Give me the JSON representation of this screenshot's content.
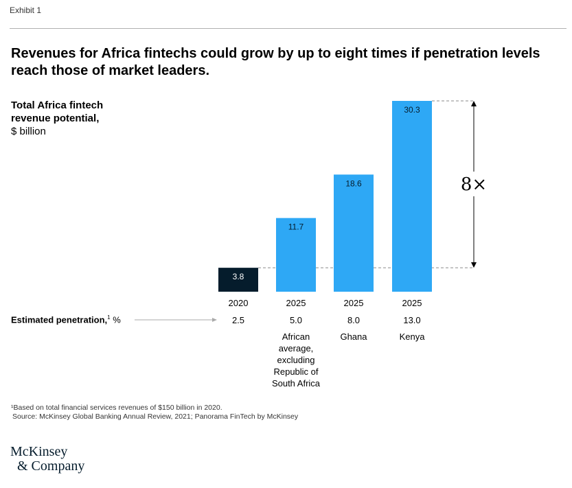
{
  "header": {
    "exhibit": "Exhibit 1"
  },
  "title": "Revenues for Africa fintechs could grow by up to eight times if penetration levels reach those of market leaders.",
  "y_label": {
    "bold": "Total Africa fintech revenue potential,",
    "unit": "$ billion"
  },
  "penetration_label": {
    "bold": "Estimated penetration,",
    "sup": "1",
    "unit": " %"
  },
  "chart_data": {
    "type": "bar",
    "title": "Revenues for Africa fintechs could grow by up to eight times if penetration levels reach those of market leaders.",
    "ylabel": "Total Africa fintech revenue potential, $ billion",
    "ylim": [
      0,
      30.3
    ],
    "categories": [
      "2020",
      "2025",
      "2025",
      "2025"
    ],
    "values": [
      3.8,
      11.7,
      18.6,
      30.3
    ],
    "value_labels": [
      "3.8",
      "11.7",
      "18.6",
      "30.3"
    ],
    "penetration": [
      "2.5",
      "5.0",
      "8.0",
      "13.0"
    ],
    "descriptions": [
      [],
      [
        "African",
        "average,",
        "excluding",
        "Republic of",
        "South Africa"
      ],
      [
        "Ghana"
      ],
      [
        "Kenya"
      ]
    ],
    "bar_colors": [
      "#051c2c",
      "#2ea8f5",
      "#2ea8f5",
      "#2ea8f5"
    ],
    "annotation": "8×"
  },
  "footnotes": {
    "note1": "¹Based on total financial services revenues of $150 billion in 2020.",
    "source": "Source: McKinsey Global Banking Annual Review, 2021; Panorama FinTech by McKinsey"
  },
  "logo": {
    "line1": "McKinsey",
    "line2": "& Company"
  }
}
